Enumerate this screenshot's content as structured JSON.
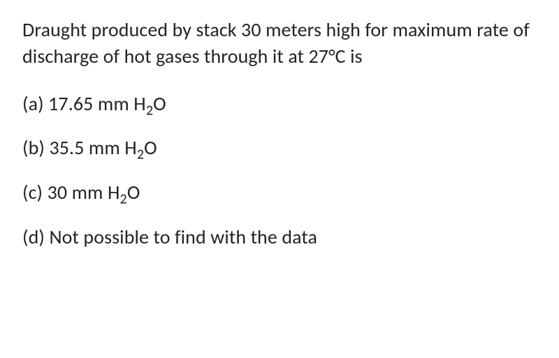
{
  "text_color": "#242424",
  "background_color": "#ffffff",
  "font_family": "Calibri, 'Segoe UI', Arial, sans-serif",
  "question_fontsize": 28,
  "option_fontsize": 28,
  "question": {
    "prefix": "Draught produced by stack 30 meters high for maximum rate of discharge of hot gases through it at 27°C is"
  },
  "options": [
    {
      "label": "(a)",
      "value": "17.65",
      "unit_prefix": "mm H",
      "sub": "2",
      "unit_suffix": "O"
    },
    {
      "label": "(b)",
      "value": "35.5",
      "unit_prefix": "mm H",
      "sub": "2",
      "unit_suffix": "O"
    },
    {
      "label": "(c)",
      "value": "30",
      "unit_prefix": "mm H",
      "sub": "2",
      "unit_suffix": "O"
    },
    {
      "label": "(d)",
      "text": "Not possible to find with the data"
    }
  ]
}
